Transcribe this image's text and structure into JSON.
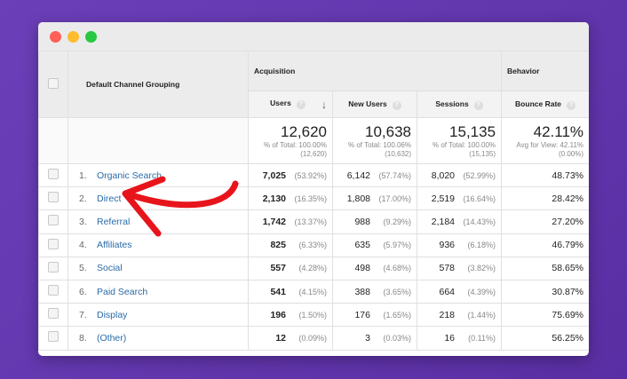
{
  "window": {
    "controls": [
      {
        "name": "close",
        "color": "#ff5f57"
      },
      {
        "name": "minimize",
        "color": "#febc2e"
      },
      {
        "name": "maximize",
        "color": "#28c840"
      }
    ]
  },
  "header": {
    "dimension": "Default Channel Grouping",
    "acquisition": "Acquisition",
    "behavior": "Behavior",
    "columns": [
      "Users",
      "New Users",
      "Sessions",
      "Bounce Rate"
    ],
    "help": "?",
    "sort_icon": "↓"
  },
  "totals": [
    {
      "value": "12,620",
      "line1": "% of Total: 100.00%",
      "line2": "(12,620)"
    },
    {
      "value": "10,638",
      "line1": "% of Total: 100.06%",
      "line2": "(10,632)"
    },
    {
      "value": "15,135",
      "line1": "% of Total: 100.00%",
      "line2": "(15,135)"
    },
    {
      "value": "42.11%",
      "line1": "Avg for View: 42.11%",
      "line2": "(0.00%)"
    }
  ],
  "rows": [
    {
      "num": "1.",
      "name": "Organic Search",
      "users": "7,025",
      "users_pct": "(53.92%)",
      "new_users": "6,142",
      "new_users_pct": "(57.74%)",
      "sessions": "8,020",
      "sessions_pct": "(52.99%)",
      "bounce": "48.73%"
    },
    {
      "num": "2.",
      "name": "Direct",
      "users": "2,130",
      "users_pct": "(16.35%)",
      "new_users": "1,808",
      "new_users_pct": "(17.00%)",
      "sessions": "2,519",
      "sessions_pct": "(16.64%)",
      "bounce": "28.42%"
    },
    {
      "num": "3.",
      "name": "Referral",
      "users": "1,742",
      "users_pct": "(13.37%)",
      "new_users": "988",
      "new_users_pct": "(9.29%)",
      "sessions": "2,184",
      "sessions_pct": "(14.43%)",
      "bounce": "27.20%"
    },
    {
      "num": "4.",
      "name": "Affiliates",
      "users": "825",
      "users_pct": "(6.33%)",
      "new_users": "635",
      "new_users_pct": "(5.97%)",
      "sessions": "936",
      "sessions_pct": "(6.18%)",
      "bounce": "46.79%"
    },
    {
      "num": "5.",
      "name": "Social",
      "users": "557",
      "users_pct": "(4.28%)",
      "new_users": "498",
      "new_users_pct": "(4.68%)",
      "sessions": "578",
      "sessions_pct": "(3.82%)",
      "bounce": "58.65%"
    },
    {
      "num": "6.",
      "name": "Paid Search",
      "users": "541",
      "users_pct": "(4.15%)",
      "new_users": "388",
      "new_users_pct": "(3.65%)",
      "sessions": "664",
      "sessions_pct": "(4.39%)",
      "bounce": "30.87%"
    },
    {
      "num": "7.",
      "name": "Display",
      "users": "196",
      "users_pct": "(1.50%)",
      "new_users": "176",
      "new_users_pct": "(1.65%)",
      "sessions": "218",
      "sessions_pct": "(1.44%)",
      "bounce": "75.69%"
    },
    {
      "num": "8.",
      "name": "(Other)",
      "users": "12",
      "users_pct": "(0.09%)",
      "new_users": "3",
      "new_users_pct": "(0.03%)",
      "sessions": "16",
      "sessions_pct": "(0.11%)",
      "bounce": "56.25%"
    }
  ],
  "annotation": {
    "arrow_color": "#e8141b"
  }
}
